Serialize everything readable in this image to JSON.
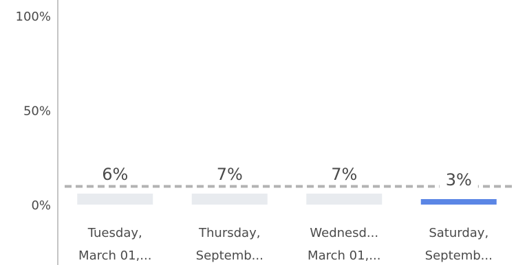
{
  "chart_data": {
    "type": "bar",
    "categories": [
      [
        "Tuesday,",
        "March 01,..."
      ],
      [
        "Thursday,",
        "Septemb..."
      ],
      [
        "Wednesd...",
        "March 01,..."
      ],
      [
        "Saturday,",
        "Septemb..."
      ]
    ],
    "values": [
      6,
      7,
      7,
      3
    ],
    "data_labels": [
      "6%",
      "7%",
      "7%",
      "3%"
    ],
    "yticks": [
      {
        "value": 0,
        "label": "0%"
      },
      {
        "value": 50,
        "label": "50%"
      },
      {
        "value": 100,
        "label": "100%"
      }
    ],
    "ylim": [
      0,
      100
    ],
    "reference_line": 10,
    "grid": false,
    "colors": {
      "bar_default": "#e8ebef",
      "bar_highlight": "#5b86e5",
      "reference_line": "#b3b3b3",
      "axis": "#888888",
      "text": "#4a4a4a"
    },
    "highlight_index": 3
  }
}
